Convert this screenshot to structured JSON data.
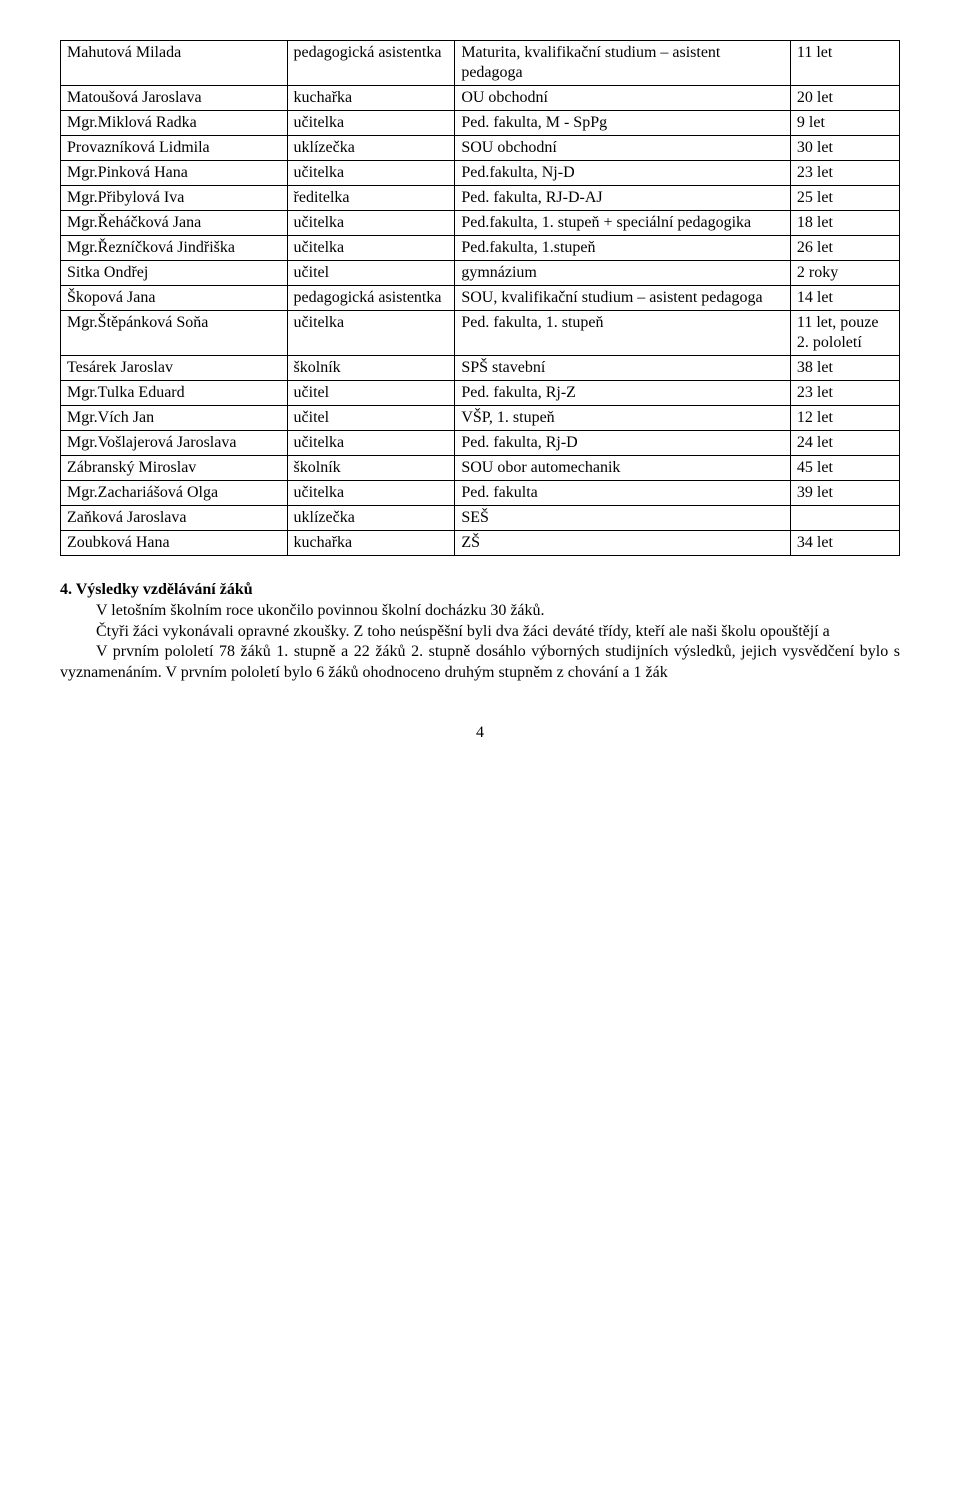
{
  "table": {
    "columns": [
      "name",
      "role",
      "qual",
      "years"
    ],
    "col_widths": [
      "27%",
      "20%",
      "40%",
      "13%"
    ],
    "rows": [
      {
        "name": "Mahutová Milada",
        "role": "pedagogická asistentka",
        "qual": "Maturita, kvalifikační studium – asistent pedagoga",
        "years": "11 let"
      },
      {
        "name": "Matoušová Jaroslava",
        "role": "kuchařka",
        "qual": "OU obchodní",
        "years": "20 let"
      },
      {
        "name": "Mgr.Miklová Radka",
        "role": "učitelka",
        "qual": "Ped. fakulta, M - SpPg",
        "years": "9 let"
      },
      {
        "name": "Provazníková Lidmila",
        "role": "uklízečka",
        "qual": "SOU obchodní",
        "years": "30 let"
      },
      {
        "name": "Mgr.Pinková Hana",
        "role": "učitelka",
        "qual": "Ped.fakulta, Nj-D",
        "years": "23 let"
      },
      {
        "name": "Mgr.Přibylová Iva",
        "role": "ředitelka",
        "qual": "Ped. fakulta, RJ-D-AJ",
        "years": "25 let"
      },
      {
        "name": "Mgr.Řeháčková Jana",
        "role": "učitelka",
        "qual": "Ped.fakulta, 1. stupeň + speciální pedagogika",
        "years": "18 let"
      },
      {
        "name": "Mgr.Řezníčková Jindřiška",
        "role": "učitelka",
        "qual": "Ped.fakulta, 1.stupeň",
        "years": "26 let"
      },
      {
        "name": "Sitka Ondřej",
        "role": "učitel",
        "qual": "gymnázium",
        "years": "2 roky"
      },
      {
        "name": "Škopová Jana",
        "role": "pedagogická asistentka",
        "qual": "SOU, kvalifikační studium – asistent pedagoga",
        "years": "14 let"
      },
      {
        "name": "Mgr.Štěpánková Soňa",
        "role": "učitelka",
        "qual": "Ped. fakulta, 1. stupeň",
        "years": "11 let, pouze 2. pololetí"
      },
      {
        "name": "Tesárek Jaroslav",
        "role": "školník",
        "qual": "SPŠ stavební",
        "years": "38 let"
      },
      {
        "name": "Mgr.Tulka Eduard",
        "role": "učitel",
        "qual": "Ped. fakulta, Rj-Z",
        "years": "23 let"
      },
      {
        "name": "Mgr.Vích Jan",
        "role": "učitel",
        "qual": "VŠP, 1. stupeň",
        "years": "12 let"
      },
      {
        "name": "Mgr.Vošlajerová Jaroslava",
        "role": "učitelka",
        "qual": "Ped. fakulta, Rj-D",
        "years": "24 let"
      },
      {
        "name": "Zábranský Miroslav",
        "role": "školník",
        "qual": "SOU obor automechanik",
        "years": "45 let"
      },
      {
        "name": "Mgr.Zachariášová Olga",
        "role": "učitelka",
        "qual": "Ped. fakulta",
        "years": "39 let"
      },
      {
        "name": "Zaňková Jaroslava",
        "role": "uklízečka",
        "qual": "SEŠ",
        "years": ""
      },
      {
        "name": "Zoubková Hana",
        "role": "kuchařka",
        "qual": "ZŠ",
        "years": "34 let"
      }
    ]
  },
  "section": {
    "heading": "4.  Výsledky vzdělávání žáků",
    "p1": "V letošním školním roce ukončilo povinnou školní docházku  30  žáků.",
    "p2": "Čtyři žáci vykonávali opravné zkoušky. Z toho neúspěšní byli dva žáci deváté třídy, kteří ale naši školu opouštějí a",
    "p3": "V prvním pololetí 78 žáků 1. stupně a 22 žáků 2. stupně dosáhlo výborných studijních výsledků, jejich vysvědčení bylo s vyznamenáním. V prvním pololetí bylo 6 žáků ohodnoceno druhým stupněm z chování a 1 žák"
  },
  "pagenum": "4",
  "colors": {
    "text": "#000000",
    "bg": "#ffffff",
    "border": "#000000"
  },
  "typography": {
    "font_family": "Times New Roman",
    "body_fontsize_pt": 12,
    "heading_weight": "bold"
  }
}
